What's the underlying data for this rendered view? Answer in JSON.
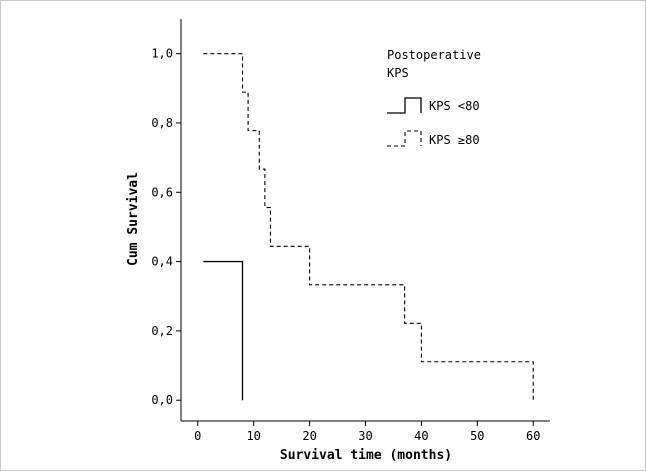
{
  "chart_data": {
    "type": "line",
    "title": "",
    "xlabel": "Survival time (months)",
    "ylabel": "Cum Survival",
    "xlim": [
      -3,
      63
    ],
    "ylim": [
      -0.06,
      1.1
    ],
    "x_ticks": [
      0,
      10,
      20,
      30,
      40,
      50,
      60
    ],
    "x_tick_labels": [
      "0",
      "10",
      "20",
      "30",
      "40",
      "50",
      "60"
    ],
    "y_ticks": [
      0.0,
      0.2,
      0.4,
      0.6,
      0.8,
      1.0
    ],
    "y_tick_labels": [
      "0,0",
      "0,2",
      "0,4",
      "0,6",
      "0,8",
      "1,0"
    ],
    "grid": false,
    "legend": {
      "title": "Postoperative KPS",
      "title_lines": [
        "Postoperative",
        "KPS"
      ],
      "placement": "top-right"
    },
    "series": [
      {
        "name": "KPS <80",
        "style": "solid",
        "color": "#000000",
        "x": [
          1,
          8,
          8
        ],
        "y": [
          0.4,
          0.4,
          0.0
        ]
      },
      {
        "name": "KPS ≥80",
        "style": "dashed",
        "color": "#000000",
        "x": [
          1,
          8,
          9,
          10,
          11,
          12,
          13,
          20,
          37,
          40,
          60,
          60
        ],
        "y": [
          1.0,
          0.889,
          0.778,
          0.778,
          0.667,
          0.556,
          0.444,
          0.333,
          0.222,
          0.111,
          0.111,
          0.0
        ]
      }
    ]
  }
}
